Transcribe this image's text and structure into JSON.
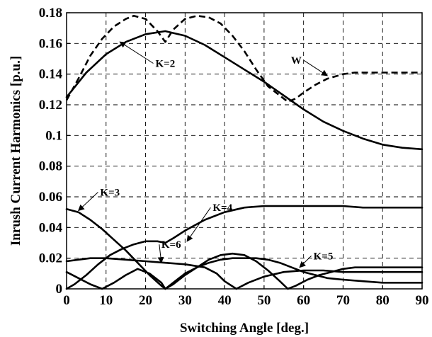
{
  "chart_data": {
    "type": "line",
    "xlabel": "Switching Angle [deg.]",
    "ylabel": "Inrush Current Harmonics [p.u.]",
    "xlim": [
      0,
      90
    ],
    "ylim": [
      0,
      0.18
    ],
    "xticks": [
      0,
      10,
      20,
      30,
      40,
      50,
      60,
      70,
      80,
      90
    ],
    "xtick_labels": [
      "0",
      "10",
      "20",
      "30",
      "40",
      "50",
      "60",
      "70",
      "80",
      "90"
    ],
    "yticks": [
      0,
      0.02,
      0.04,
      0.06,
      0.08,
      0.1,
      0.12,
      0.14,
      0.16,
      0.18
    ],
    "ytick_labels": [
      "0",
      "0.02",
      "0.04",
      "0.06",
      "0.08",
      "0.1",
      "0.12",
      "0.14",
      "0.16",
      "0.18"
    ],
    "grid": true,
    "series": [
      {
        "name": "K=2",
        "dash": "solid",
        "x": [
          0,
          5,
          10,
          15,
          20,
          25,
          30,
          35,
          40,
          45,
          50,
          55,
          60,
          65,
          70,
          75,
          80,
          85,
          90
        ],
        "y": [
          0.125,
          0.141,
          0.153,
          0.161,
          0.166,
          0.168,
          0.165,
          0.159,
          0.151,
          0.143,
          0.135,
          0.126,
          0.117,
          0.109,
          0.103,
          0.098,
          0.094,
          0.092,
          0.091
        ]
      },
      {
        "name": "W",
        "dash": "dashed",
        "x": [
          0,
          3,
          6,
          9,
          12,
          15,
          17,
          20,
          23,
          25,
          27,
          30,
          33,
          36,
          39,
          42,
          45,
          48,
          51,
          54,
          56,
          58,
          60,
          63,
          66,
          70,
          73,
          76,
          80,
          85,
          90
        ],
        "y": [
          0.123,
          0.137,
          0.152,
          0.163,
          0.171,
          0.176,
          0.178,
          0.176,
          0.168,
          0.161,
          0.169,
          0.176,
          0.178,
          0.177,
          0.173,
          0.165,
          0.155,
          0.143,
          0.132,
          0.126,
          0.122,
          0.124,
          0.128,
          0.133,
          0.137,
          0.14,
          0.141,
          0.141,
          0.141,
          0.141,
          0.141
        ]
      },
      {
        "name": "K=3",
        "dash": "solid",
        "x": [
          0,
          3,
          6,
          9,
          12,
          15,
          18,
          21,
          24,
          25,
          27,
          30,
          33,
          36,
          39,
          42,
          45,
          48,
          51,
          54,
          56,
          58,
          61,
          64,
          67,
          70,
          73,
          76,
          80,
          85,
          90
        ],
        "y": [
          0.052,
          0.05,
          0.045,
          0.039,
          0.032,
          0.025,
          0.017,
          0.009,
          0.002,
          0.0,
          0.003,
          0.009,
          0.014,
          0.019,
          0.022,
          0.023,
          0.022,
          0.018,
          0.012,
          0.005,
          0.0,
          0.002,
          0.006,
          0.009,
          0.011,
          0.013,
          0.014,
          0.014,
          0.014,
          0.014,
          0.014
        ]
      },
      {
        "name": "K=4",
        "dash": "solid",
        "x": [
          0,
          2,
          5,
          8,
          11,
          14,
          17,
          20,
          23,
          25,
          27,
          30,
          35,
          40,
          45,
          50,
          55,
          60,
          65,
          70,
          75,
          80,
          85,
          90
        ],
        "y": [
          0.0,
          0.003,
          0.009,
          0.016,
          0.022,
          0.026,
          0.029,
          0.031,
          0.031,
          0.03,
          0.033,
          0.038,
          0.045,
          0.05,
          0.053,
          0.054,
          0.054,
          0.054,
          0.054,
          0.054,
          0.053,
          0.053,
          0.053,
          0.053
        ]
      },
      {
        "name": "K=5",
        "dash": "solid",
        "x": [
          0,
          3,
          6,
          9,
          12,
          15,
          18,
          21,
          24,
          25,
          27,
          30,
          33,
          36,
          39,
          42,
          45,
          48,
          51,
          54,
          57,
          60,
          63,
          66,
          70,
          75,
          80,
          85,
          90
        ],
        "y": [
          0.011,
          0.007,
          0.003,
          0.0,
          0.004,
          0.009,
          0.013,
          0.01,
          0.004,
          0.0,
          0.004,
          0.01,
          0.014,
          0.017,
          0.019,
          0.02,
          0.02,
          0.02,
          0.019,
          0.017,
          0.014,
          0.011,
          0.009,
          0.007,
          0.006,
          0.005,
          0.004,
          0.004,
          0.004
        ]
      },
      {
        "name": "K=6",
        "dash": "solid",
        "x": [
          0,
          3,
          6,
          10,
          15,
          20,
          25,
          30,
          35,
          38,
          40,
          43,
          46,
          50,
          55,
          60,
          65,
          70,
          75,
          80,
          85,
          90
        ],
        "y": [
          0.018,
          0.019,
          0.02,
          0.02,
          0.019,
          0.018,
          0.017,
          0.016,
          0.014,
          0.01,
          0.005,
          0.0,
          0.004,
          0.008,
          0.011,
          0.012,
          0.012,
          0.011,
          0.011,
          0.011,
          0.011,
          0.011
        ]
      }
    ],
    "annotations": [
      {
        "text": "K=2",
        "target": [
          13.5,
          0.161
        ],
        "label_at": [
          22.5,
          0.147
        ]
      },
      {
        "text": "W",
        "target": [
          66,
          0.139
        ],
        "label_at": [
          59.5,
          0.149
        ]
      },
      {
        "text": "K=3",
        "target": [
          3,
          0.051
        ],
        "label_at": [
          8.5,
          0.063
        ]
      },
      {
        "text": "K=4",
        "target": [
          30.5,
          0.031
        ],
        "label_at": [
          37,
          0.053
        ]
      },
      {
        "text": "K=5",
        "target": [
          59,
          0.014
        ],
        "label_at": [
          62.5,
          0.0215
        ]
      },
      {
        "text": "K=6",
        "target": [
          24,
          0.017
        ],
        "label_at": [
          24,
          0.029
        ]
      }
    ]
  }
}
